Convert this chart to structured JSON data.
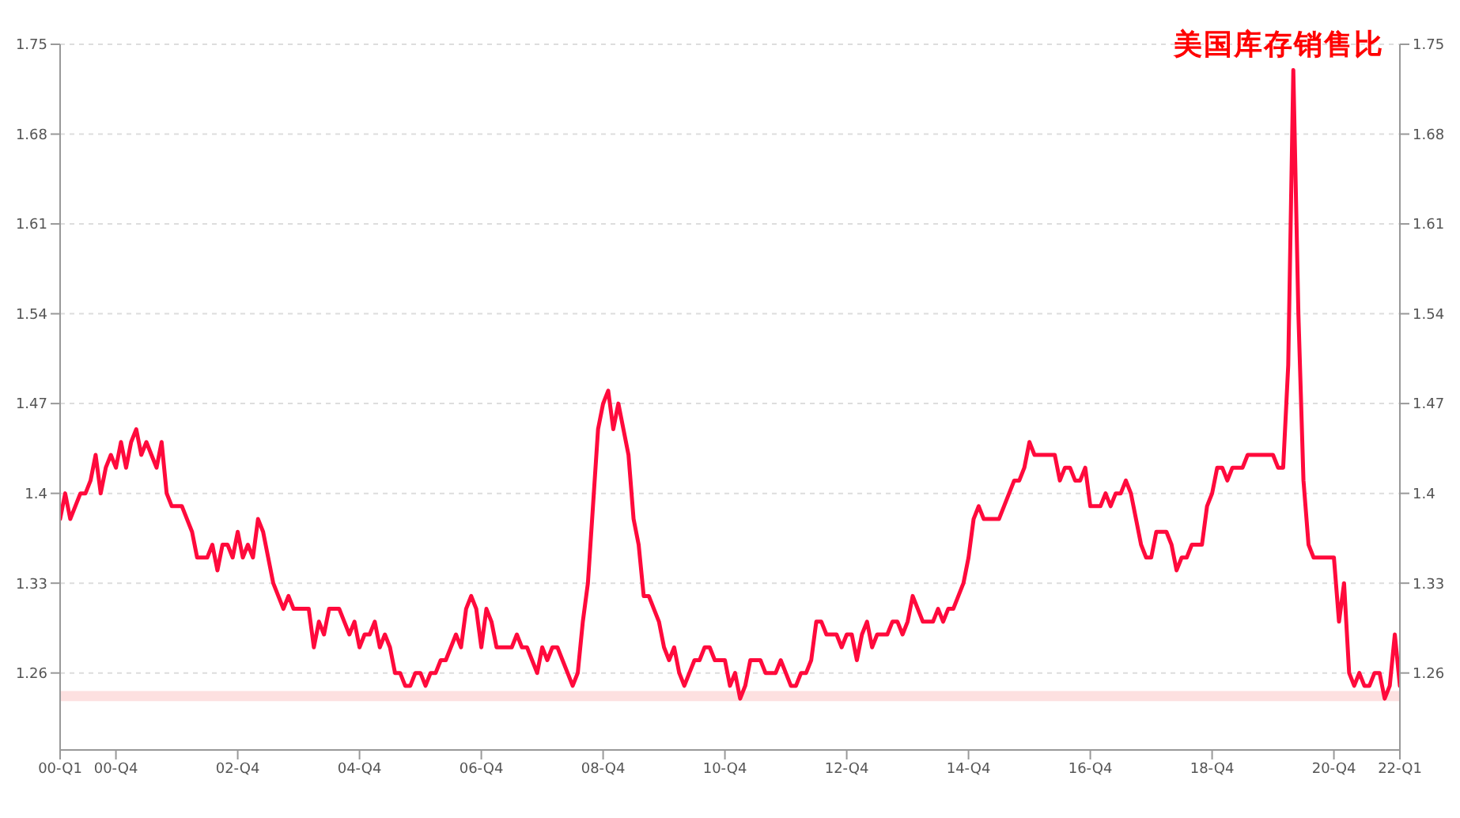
{
  "chart_data": {
    "type": "line",
    "title": "美国库存销售比",
    "categories": [
      "00-Q1",
      null,
      null,
      null,
      null,
      null,
      null,
      null,
      null,
      null,
      null,
      "00-Q4",
      null,
      null,
      null,
      null,
      null,
      null,
      null,
      null,
      null,
      null,
      null,
      null,
      null,
      null,
      null,
      null,
      null,
      null,
      null,
      null,
      null,
      null,
      null,
      "02-Q4",
      null,
      null,
      null,
      null,
      null,
      null,
      null,
      null,
      null,
      null,
      null,
      null,
      null,
      null,
      null,
      null,
      null,
      null,
      null,
      null,
      null,
      null,
      null,
      "04-Q4",
      null,
      null,
      null,
      null,
      null,
      null,
      null,
      null,
      null,
      null,
      null,
      null,
      null,
      null,
      null,
      null,
      null,
      null,
      null,
      null,
      null,
      null,
      null,
      "06-Q4",
      null,
      null,
      null,
      null,
      null,
      null,
      null,
      null,
      null,
      null,
      null,
      null,
      null,
      null,
      null,
      null,
      null,
      null,
      null,
      null,
      null,
      null,
      null,
      "08-Q4",
      null,
      null,
      null,
      null,
      null,
      null,
      null,
      null,
      null,
      null,
      null,
      null,
      null,
      null,
      null,
      null,
      null,
      null,
      null,
      null,
      null,
      null,
      null,
      "10-Q4",
      null,
      null,
      null,
      null,
      null,
      null,
      null,
      null,
      null,
      null,
      null,
      null,
      null,
      null,
      null,
      null,
      null,
      null,
      null,
      null,
      null,
      null,
      null,
      "12-Q4",
      null,
      null,
      null,
      null,
      null,
      null,
      null,
      null,
      null,
      null,
      null,
      null,
      null,
      null,
      null,
      null,
      null,
      null,
      null,
      null,
      null,
      null,
      null,
      "14-Q4",
      null,
      null,
      null,
      null,
      null,
      null,
      null,
      null,
      null,
      null,
      null,
      null,
      null,
      null,
      null,
      null,
      null,
      null,
      null,
      null,
      null,
      null,
      null,
      "16-Q4",
      null,
      null,
      null,
      null,
      null,
      null,
      null,
      null,
      null,
      null,
      null,
      null,
      null,
      null,
      null,
      null,
      null,
      null,
      null,
      null,
      null,
      null,
      null,
      "18-Q4",
      null,
      null,
      null,
      null,
      null,
      null,
      null,
      null,
      null,
      null,
      null,
      null,
      null,
      null,
      null,
      null,
      null,
      null,
      null,
      null,
      null,
      null,
      null,
      "20-Q4",
      null,
      null,
      null,
      null,
      null,
      null,
      null,
      null,
      null,
      null,
      null,
      null,
      "22-Q1"
    ],
    "ylim": [
      1.2,
      1.75
    ],
    "yticks": [
      1.26,
      1.33,
      1.4,
      1.47,
      1.54,
      1.61,
      1.68,
      1.75
    ],
    "y2lim": [
      1.2,
      1.75
    ],
    "y2ticks": [
      1.26,
      1.33,
      1.4,
      1.47,
      1.54,
      1.61,
      1.68,
      1.75
    ],
    "grid": "y",
    "marker": "none",
    "line_style": "solid",
    "bands": [
      {
        "axis": "y",
        "from": 1.238,
        "to": 1.246,
        "color": "#fde0e0"
      }
    ],
    "series": [
      {
        "color": "#ff0a3c",
        "values": [
          1.38,
          1.4,
          1.38,
          1.39,
          1.4,
          1.4,
          1.41,
          1.43,
          1.4,
          1.42,
          1.43,
          1.42,
          1.44,
          1.42,
          1.44,
          1.45,
          1.43,
          1.44,
          1.43,
          1.42,
          1.44,
          1.4,
          1.39,
          1.39,
          1.39,
          1.38,
          1.37,
          1.35,
          1.35,
          1.35,
          1.36,
          1.34,
          1.36,
          1.36,
          1.35,
          1.37,
          1.35,
          1.36,
          1.35,
          1.38,
          1.37,
          1.35,
          1.33,
          1.32,
          1.31,
          1.32,
          1.31,
          1.31,
          1.31,
          1.31,
          1.28,
          1.3,
          1.29,
          1.31,
          1.31,
          1.31,
          1.3,
          1.29,
          1.3,
          1.28,
          1.29,
          1.29,
          1.3,
          1.28,
          1.29,
          1.28,
          1.26,
          1.26,
          1.25,
          1.25,
          1.26,
          1.26,
          1.25,
          1.26,
          1.26,
          1.27,
          1.27,
          1.28,
          1.29,
          1.28,
          1.31,
          1.32,
          1.31,
          1.28,
          1.31,
          1.3,
          1.28,
          1.28,
          1.28,
          1.28,
          1.29,
          1.28,
          1.28,
          1.27,
          1.26,
          1.28,
          1.27,
          1.28,
          1.28,
          1.27,
          1.26,
          1.25,
          1.26,
          1.3,
          1.33,
          1.39,
          1.45,
          1.47,
          1.48,
          1.45,
          1.47,
          1.45,
          1.43,
          1.38,
          1.36,
          1.32,
          1.32,
          1.31,
          1.3,
          1.28,
          1.27,
          1.28,
          1.26,
          1.25,
          1.26,
          1.27,
          1.27,
          1.28,
          1.28,
          1.27,
          1.27,
          1.27,
          1.25,
          1.26,
          1.24,
          1.25,
          1.27,
          1.27,
          1.27,
          1.26,
          1.26,
          1.26,
          1.27,
          1.26,
          1.25,
          1.25,
          1.26,
          1.26,
          1.27,
          1.3,
          1.3,
          1.29,
          1.29,
          1.29,
          1.28,
          1.29,
          1.29,
          1.27,
          1.29,
          1.3,
          1.28,
          1.29,
          1.29,
          1.29,
          1.3,
          1.3,
          1.29,
          1.3,
          1.32,
          1.31,
          1.3,
          1.3,
          1.3,
          1.31,
          1.3,
          1.31,
          1.31,
          1.32,
          1.33,
          1.35,
          1.38,
          1.39,
          1.38,
          1.38,
          1.38,
          1.38,
          1.39,
          1.4,
          1.41,
          1.41,
          1.42,
          1.44,
          1.43,
          1.43,
          1.43,
          1.43,
          1.43,
          1.41,
          1.42,
          1.42,
          1.41,
          1.41,
          1.42,
          1.39,
          1.39,
          1.39,
          1.4,
          1.39,
          1.4,
          1.4,
          1.41,
          1.4,
          1.38,
          1.36,
          1.35,
          1.35,
          1.37,
          1.37,
          1.37,
          1.36,
          1.34,
          1.35,
          1.35,
          1.36,
          1.36,
          1.36,
          1.39,
          1.4,
          1.42,
          1.42,
          1.41,
          1.42,
          1.42,
          1.42,
          1.43,
          1.43,
          1.43,
          1.43,
          1.43,
          1.43,
          1.42,
          1.42,
          1.5,
          1.73,
          1.54,
          1.41,
          1.36,
          1.35,
          1.35,
          1.35,
          1.35,
          1.35,
          1.3,
          1.33,
          1.26,
          1.25,
          1.26,
          1.25,
          1.25,
          1.26,
          1.26,
          1.24,
          1.25,
          1.29,
          1.25
        ]
      }
    ]
  }
}
